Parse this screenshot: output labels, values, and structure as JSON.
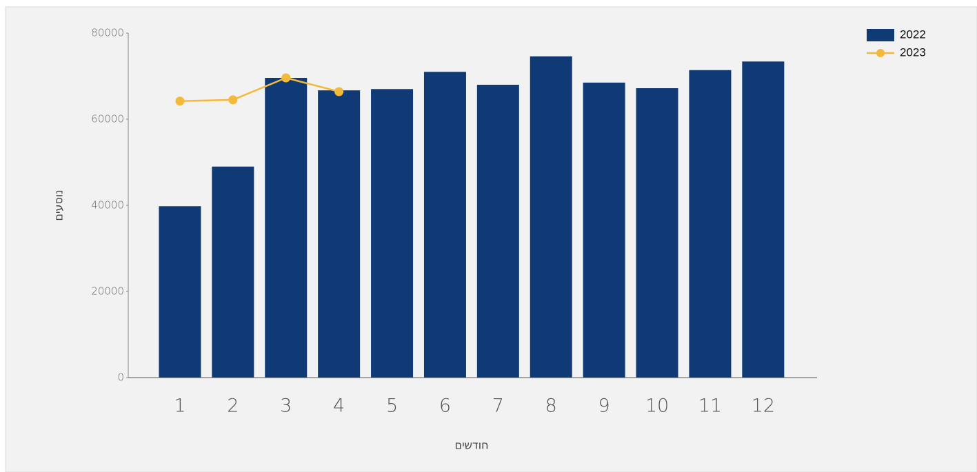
{
  "chart_data": {
    "type": "combo",
    "categories": [
      "1",
      "2",
      "3",
      "4",
      "5",
      "6",
      "7",
      "8",
      "9",
      "10",
      "11",
      "12"
    ],
    "series": [
      {
        "name": "2022",
        "type": "bar",
        "color": "#0f3a75",
        "values": [
          39800,
          49000,
          69600,
          66700,
          67000,
          71000,
          68000,
          74600,
          68500,
          67200,
          71400,
          73400
        ]
      },
      {
        "name": "2023",
        "type": "line",
        "color": "#f4b93a",
        "values": [
          64200,
          64500,
          69600,
          66400,
          null,
          null,
          null,
          null,
          null,
          null,
          null,
          null
        ]
      }
    ],
    "ylim": [
      0,
      80000
    ],
    "yticks": [
      0,
      20000,
      40000,
      60000,
      80000
    ],
    "ylabel": "נוסעים",
    "xlabel": "חודשים",
    "legend": "top-right"
  }
}
